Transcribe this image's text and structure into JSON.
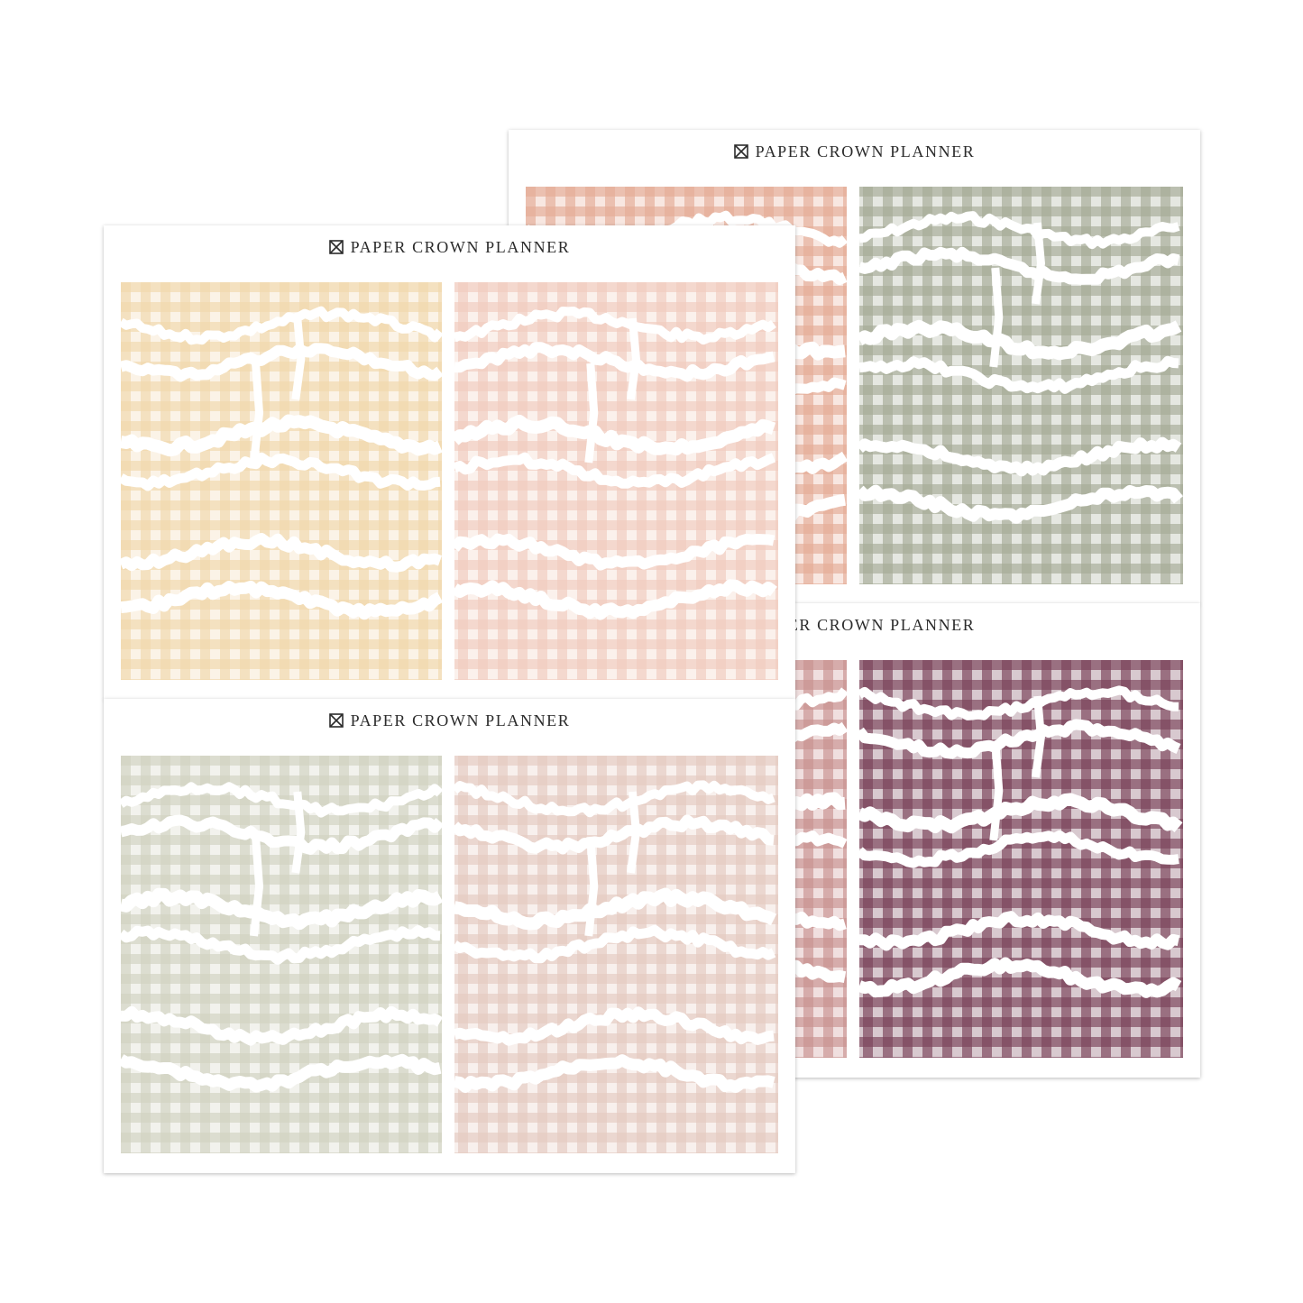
{
  "brand": {
    "name": "PAPER CROWN PLANNER"
  },
  "sheets": [
    {
      "id": "sheet-right-top",
      "left_color": "#e3a48b",
      "right_color": "#9ea28c"
    },
    {
      "id": "sheet-right-bottom",
      "left_color": "#c48786",
      "right_color": "#6d2f48"
    },
    {
      "id": "sheet-left-top",
      "left_color": "#efd3a4",
      "right_color": "#efc7b9"
    },
    {
      "id": "sheet-left-bottom",
      "left_color": "#cdcebb",
      "right_color": "#e3c6bb"
    }
  ],
  "icons": {
    "logo": "crossed-square-logo-icon"
  }
}
